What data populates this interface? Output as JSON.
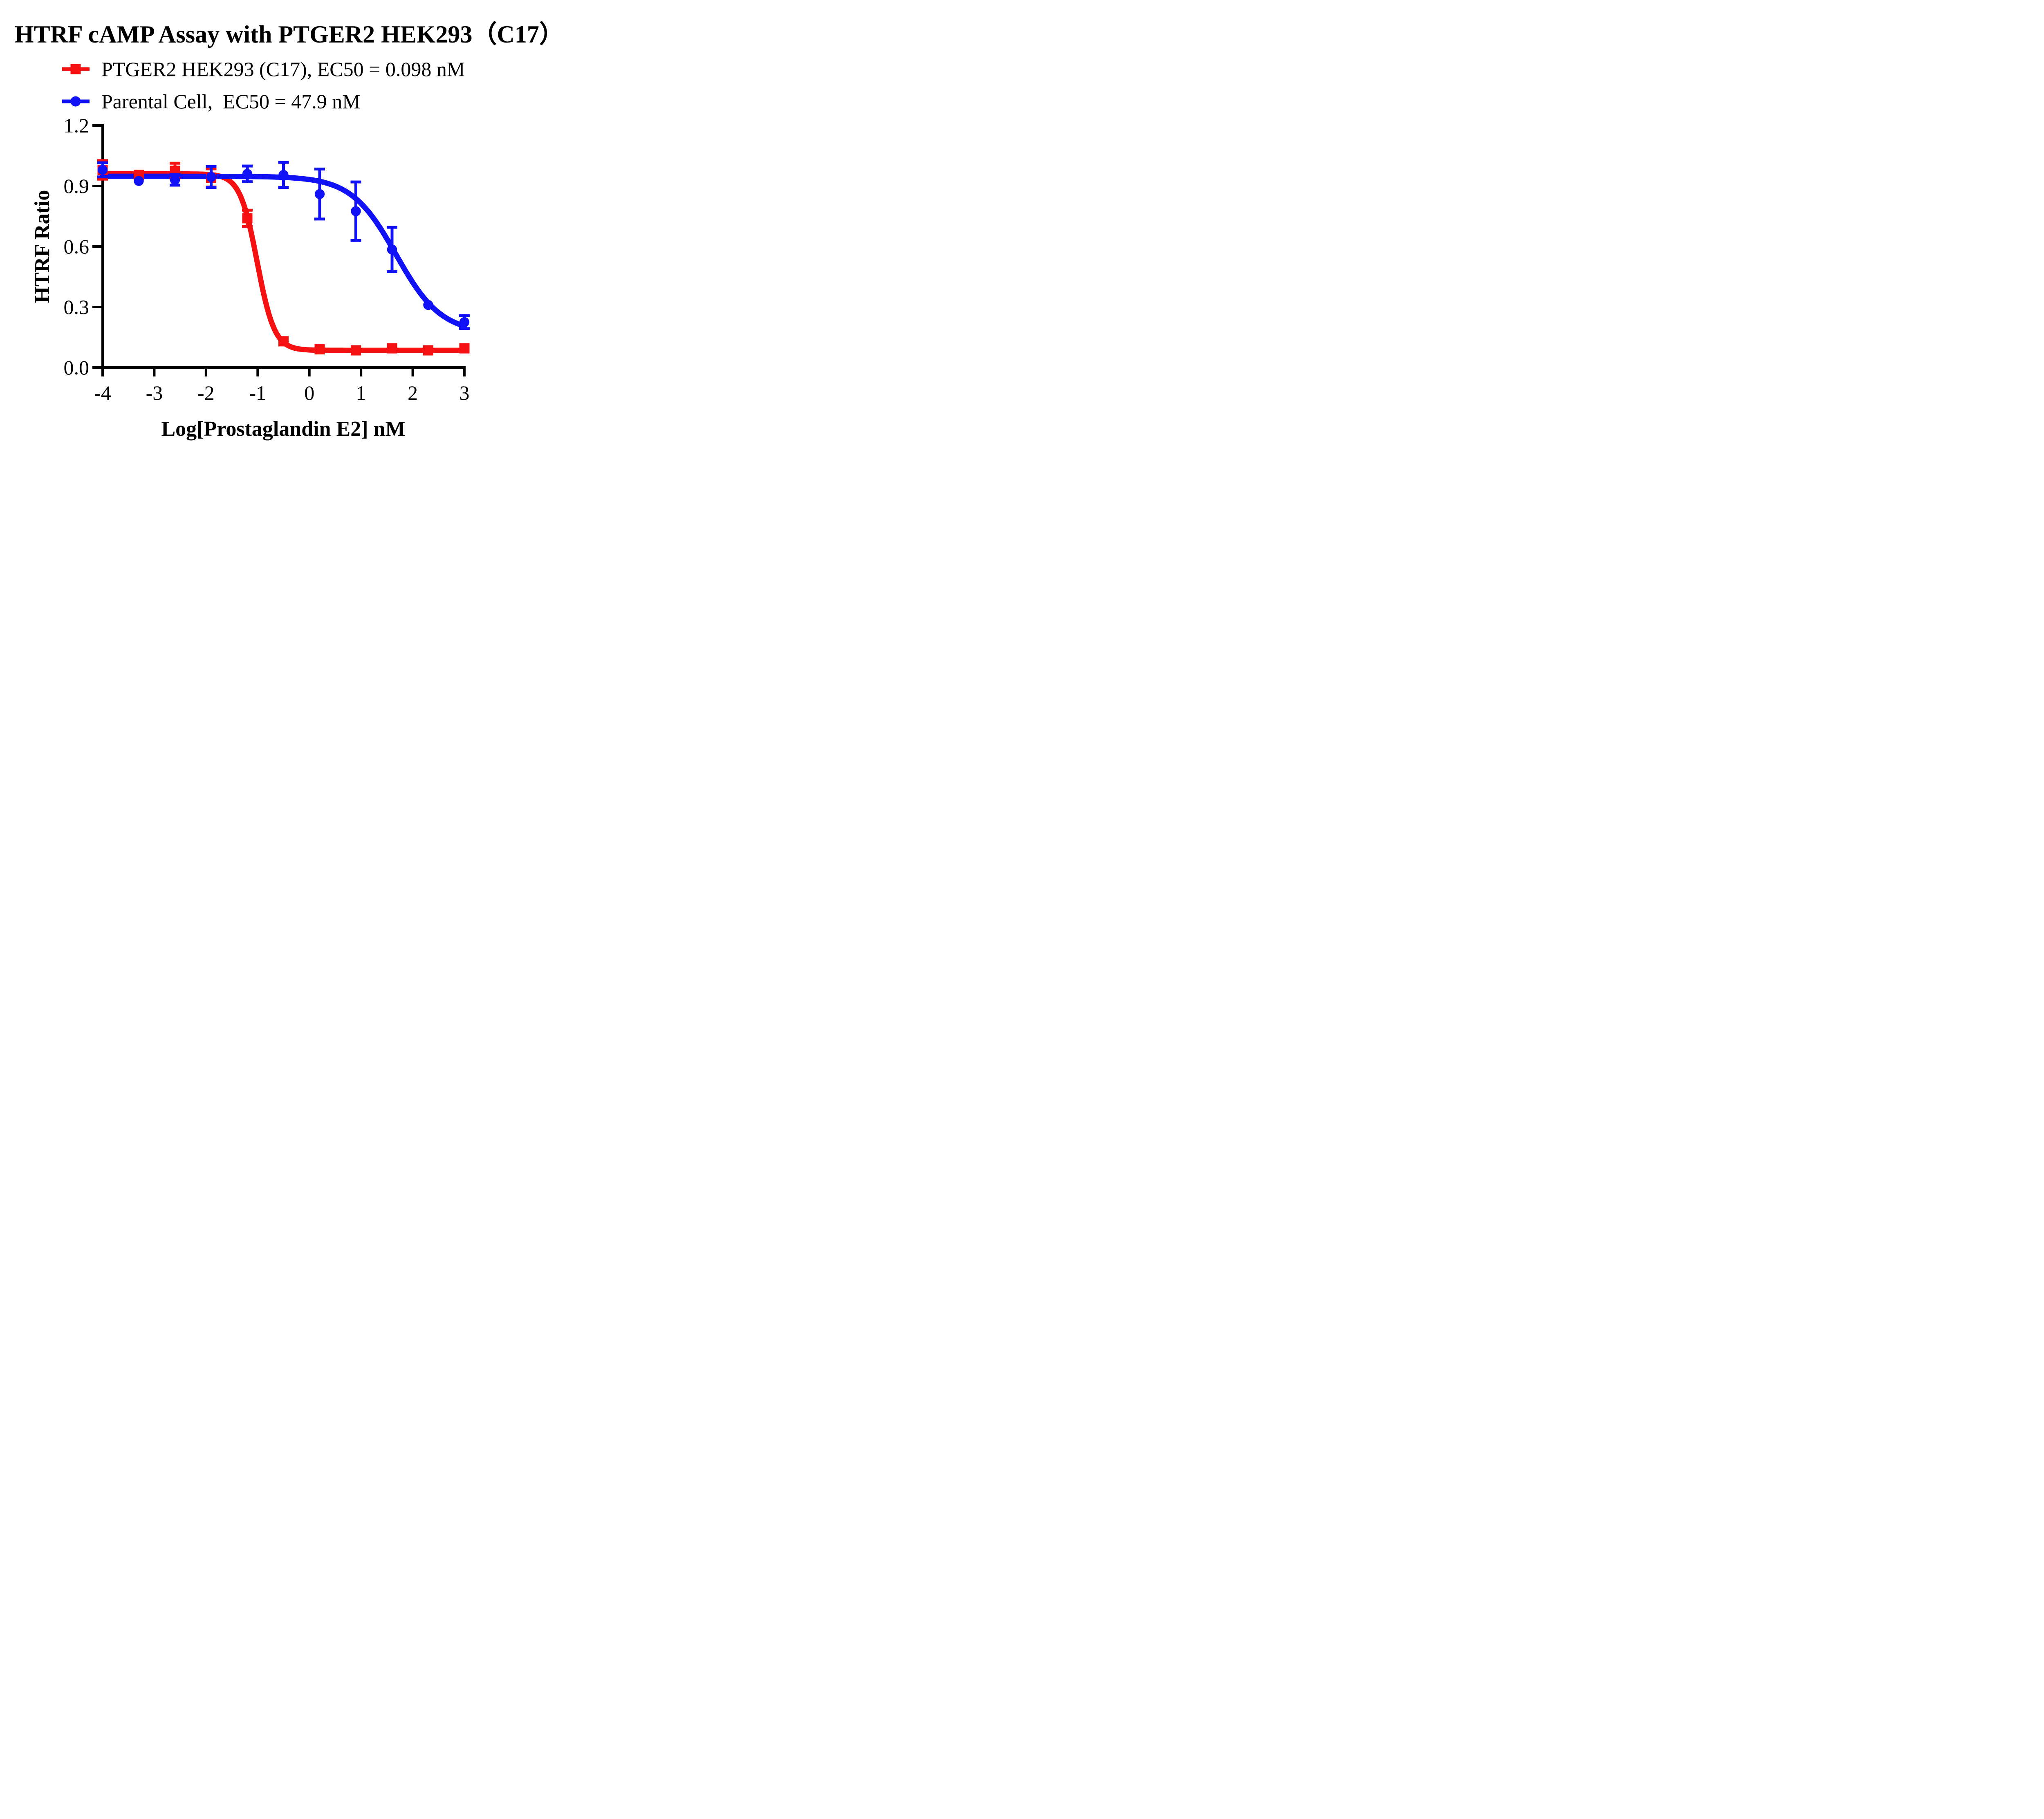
{
  "title": "HTRF cAMP Assay with PTGER2 HEK293（C17）",
  "colors": {
    "red_series": "#f51111",
    "blue_series": "#1111f5",
    "axis": "#000000",
    "background": "#ffffff"
  },
  "legend": [
    {
      "label": "PTGER2 HEK293 (C17), EC50 = 0.098 nM",
      "marker": "square",
      "color": "#f51111"
    },
    {
      "label": "Parental Cell,  EC50 = 47.9 nM",
      "marker": "circle",
      "color": "#1111f5"
    }
  ],
  "chart_data": {
    "type": "line",
    "title": "HTRF cAMP Assay with PTGER2 HEK293（C17）",
    "xlabel": "Log[Prostaglandin E2] nM",
    "ylabel": "HTRF Ratio",
    "xlim": [
      -4,
      3
    ],
    "ylim": [
      0.0,
      1.2
    ],
    "x_ticks": [
      -4,
      -3,
      -2,
      -1,
      0,
      1,
      2,
      3
    ],
    "y_ticks": [
      0.0,
      0.3,
      0.6,
      0.9,
      1.2
    ],
    "y_tick_labels": [
      "0.0",
      "0.3",
      "0.6",
      "0.9",
      "1.2"
    ],
    "grid": false,
    "legend_position": "top-left",
    "x": [
      -4,
      -3.3,
      -2.6,
      -1.9,
      -1.2,
      -0.5,
      0.2,
      0.9,
      1.6,
      2.3,
      3
    ],
    "series": [
      {
        "name": "PTGER2 HEK293 (C17)",
        "ec50_label": "EC50 = 0.098 nM",
        "ec50_nM": 0.098,
        "color": "#f51111",
        "marker": "square",
        "values": [
          0.98,
          0.955,
          0.975,
          0.94,
          0.74,
          0.13,
          0.09,
          0.085,
          0.095,
          0.085,
          0.095
        ],
        "errors": [
          0.046,
          0,
          0.038,
          0.045,
          0.04,
          0,
          0,
          0,
          0,
          0,
          0
        ],
        "fit": {
          "top": 0.96,
          "bottom": 0.085,
          "logec50": -1.009,
          "hill": 2.6
        }
      },
      {
        "name": "Parental Cell",
        "ec50_label": "EC50 = 47.9 nM",
        "ec50_nM": 47.9,
        "color": "#1111f5",
        "marker": "circle",
        "values": [
          0.98,
          0.925,
          0.93,
          0.945,
          0.96,
          0.955,
          0.86,
          0.775,
          0.585,
          0.31,
          0.225
        ],
        "errors": [
          0.035,
          0,
          0.026,
          0.052,
          0.039,
          0.062,
          0.124,
          0.145,
          0.11,
          0,
          0.032
        ],
        "fit": {
          "top": 0.948,
          "bottom": 0.17,
          "logec50": 1.68,
          "hill": 1.0
        }
      }
    ]
  }
}
